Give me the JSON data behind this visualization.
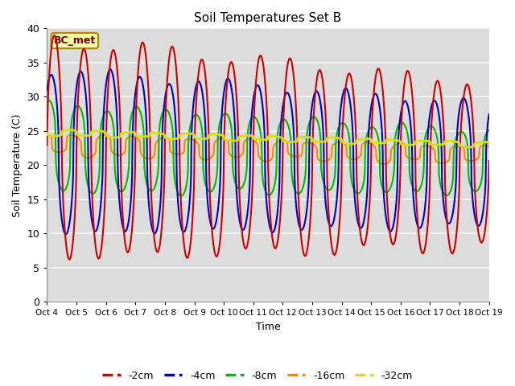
{
  "title": "Soil Temperatures Set B",
  "xlabel": "Time",
  "ylabel": "Soil Temperature (C)",
  "ylim": [
    0,
    40
  ],
  "xlim": [
    0,
    360
  ],
  "annotation": "BC_met",
  "background_color": "#dcdcdc",
  "grid_color": "#f5f5f5",
  "x_tick_labels": [
    "Oct 4",
    "Oct 5",
    "Oct 6",
    "Oct 7",
    "Oct 8",
    "Oct 9",
    "Oct 10",
    "Oct 11",
    "Oct 12",
    "Oct 13",
    "Oct 14",
    "Oct 15",
    "Oct 16",
    "Oct 17",
    "Oct 18",
    "Oct 19"
  ],
  "x_tick_positions": [
    0,
    24,
    48,
    72,
    96,
    120,
    144,
    168,
    192,
    216,
    240,
    264,
    288,
    312,
    336,
    360
  ],
  "y_ticks": [
    0,
    5,
    10,
    15,
    20,
    25,
    30,
    35,
    40
  ],
  "series": {
    "neg2cm": {
      "color": "#cc0000",
      "label": "-2cm",
      "linewidth": 1.5
    },
    "neg4cm": {
      "color": "#0000cc",
      "label": "-4cm",
      "linewidth": 1.5
    },
    "neg8cm": {
      "color": "#00bb00",
      "label": "-8cm",
      "linewidth": 1.5
    },
    "neg16cm": {
      "color": "#ff8800",
      "label": "-16cm",
      "linewidth": 1.5
    },
    "neg32cm": {
      "color": "#dddd00",
      "label": "-32cm",
      "linewidth": 2.0
    }
  }
}
